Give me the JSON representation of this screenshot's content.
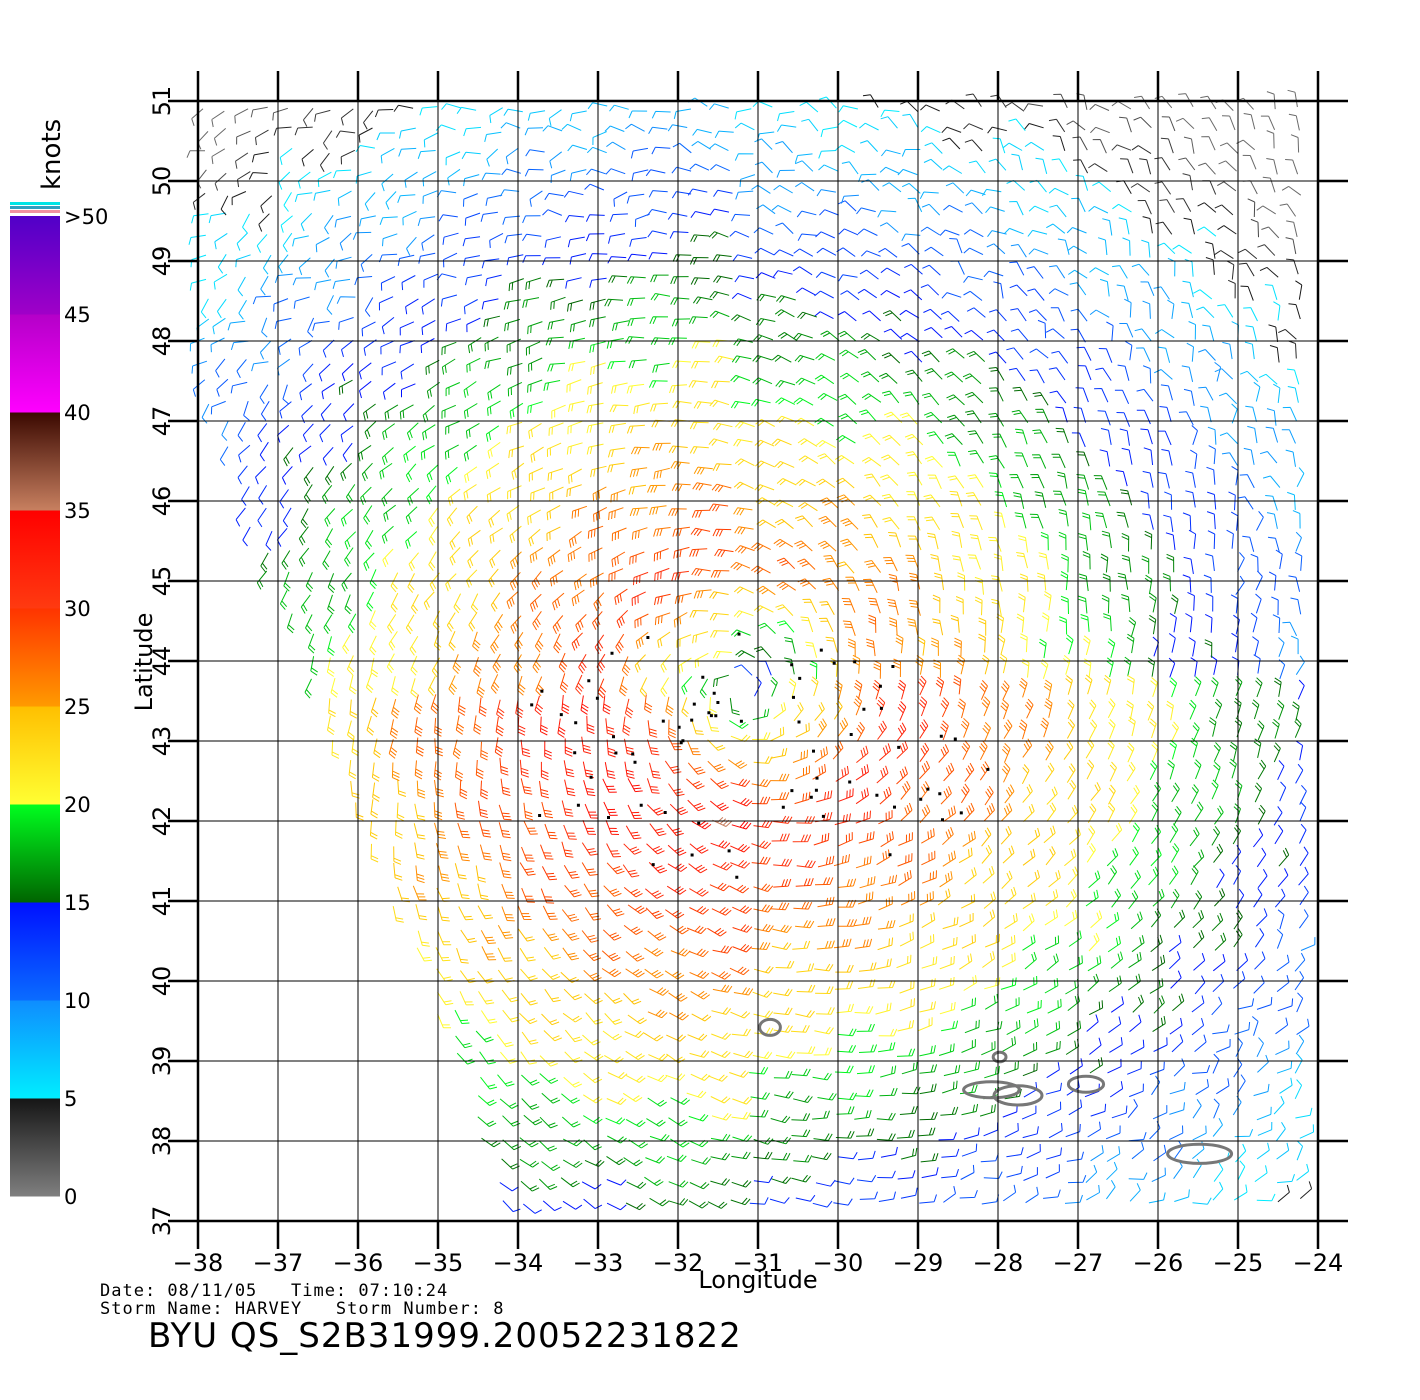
{
  "map": {
    "lon_range": [
      -38,
      -24
    ],
    "lat_range": [
      37,
      51
    ],
    "lon_ticks": [
      -38,
      -37,
      -36,
      -35,
      -34,
      -33,
      -32,
      -31,
      -30,
      -29,
      -28,
      -27,
      -26,
      -25,
      -24
    ],
    "lat_ticks": [
      37,
      38,
      39,
      40,
      41,
      42,
      43,
      44,
      45,
      46,
      47,
      48,
      49,
      50,
      51
    ],
    "xlabel": "Longitude",
    "ylabel": "Latitude",
    "grid": true,
    "storm_center": {
      "lon": -31.2,
      "lat": 43.6
    },
    "land_outline_color": "#777777",
    "islands": [
      {
        "name": "",
        "lon": -30.85,
        "lat": 39.42,
        "rx": 0.13,
        "ry": 0.1
      },
      {
        "name": "",
        "lon": -28.08,
        "lat": 38.64,
        "rx": 0.35,
        "ry": 0.1
      },
      {
        "name": "",
        "lon": -27.75,
        "lat": 38.57,
        "rx": 0.3,
        "ry": 0.12
      },
      {
        "name": "",
        "lon": -27.98,
        "lat": 39.05,
        "rx": 0.08,
        "ry": 0.06
      },
      {
        "name": "",
        "lon": -26.9,
        "lat": 38.71,
        "rx": 0.22,
        "ry": 0.1
      },
      {
        "name": "",
        "lon": -25.48,
        "lat": 37.84,
        "rx": 0.4,
        "ry": 0.12
      }
    ]
  },
  "legend": {
    "title": "knots",
    "labels": [
      ">50",
      "45",
      "40",
      "35",
      "30",
      "25",
      "20",
      "15",
      "10",
      "5",
      "0"
    ],
    "bands": [
      {
        "min": 0,
        "max": 5,
        "from": "#7f7f7f",
        "to": "#151515"
      },
      {
        "min": 5,
        "max": 10,
        "from": "#00eeff",
        "to": "#0f8cff"
      },
      {
        "min": 10,
        "max": 15,
        "from": "#0a6cff",
        "to": "#0010ff"
      },
      {
        "min": 15,
        "max": 20,
        "from": "#006400",
        "to": "#00ff1f"
      },
      {
        "min": 20,
        "max": 25,
        "from": "#ffff33",
        "to": "#ffbf00"
      },
      {
        "min": 25,
        "max": 30,
        "from": "#ff9a00",
        "to": "#ff3300"
      },
      {
        "min": 30,
        "max": 35,
        "from": "#ff3a10",
        "to": "#ff0000"
      },
      {
        "min": 35,
        "max": 40,
        "from": "#c88060",
        "to": "#3a0800"
      },
      {
        "min": 40,
        "max": 45,
        "from": "#ff00ff",
        "to": "#b400c8"
      },
      {
        "min": 45,
        "max": 50,
        "from": "#a000c8",
        "to": "#5000c8"
      }
    ],
    "top_swatches": [
      "#f090a0",
      "#30a0c0",
      "#00e5e5"
    ]
  },
  "footer": {
    "date_line": "Date: 08/11/05   Time: 07:10:24",
    "storm_line": "Storm Name: HARVEY   Storm Number: 8",
    "product_id": "BYU QS_S2B31999.20052231822"
  }
}
